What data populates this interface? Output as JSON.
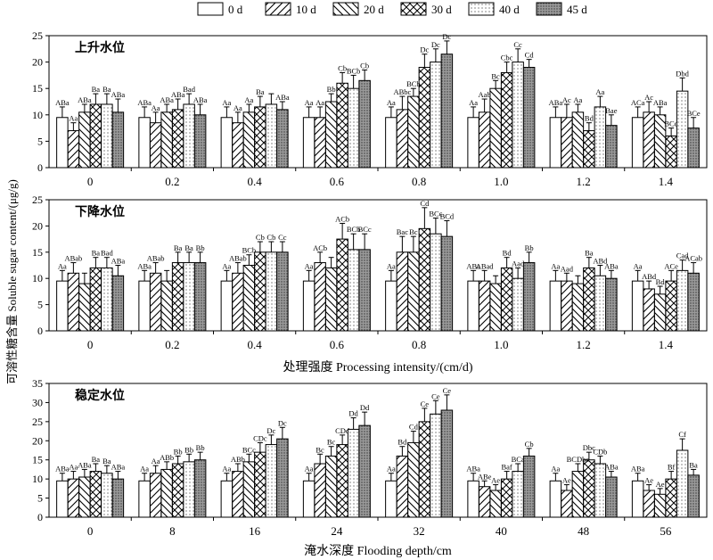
{
  "legend": [
    {
      "label": "0 d",
      "pattern": "blank"
    },
    {
      "label": "10 d",
      "pattern": "fwd"
    },
    {
      "label": "20 d",
      "pattern": "back"
    },
    {
      "label": "30 d",
      "pattern": "cross"
    },
    {
      "label": "40 d",
      "pattern": "dots"
    },
    {
      "label": "45 d",
      "pattern": "dense"
    }
  ],
  "ylabel": "可溶性糖含量  Soluble sugar content/(μg/g)",
  "chart_data": [
    {
      "type": "bar",
      "title": "上升水位",
      "categories": [
        "0",
        "0.2",
        "0.4",
        "0.6",
        "0.8",
        "1.0",
        "1.2",
        "1.4"
      ],
      "xlabel": "",
      "ylim": [
        0,
        25
      ],
      "yticks": [
        0,
        5,
        10,
        15,
        20,
        25
      ],
      "series": [
        {
          "name": "0 d",
          "values": [
            9.5,
            9.5,
            9.5,
            9.5,
            9.5,
            9.5,
            9.5,
            9.5
          ],
          "errors": [
            2.0,
            2.0,
            2.0,
            2.0,
            2.0,
            2.0,
            2.0,
            2.0
          ],
          "labels": [
            "ABa",
            "ABa",
            "Aa",
            "Aa",
            "Aa",
            "Aa",
            "ABa",
            "ACa"
          ]
        },
        {
          "name": "10 d",
          "values": [
            7.0,
            8.5,
            8.5,
            9.5,
            11.0,
            10.5,
            9.5,
            10.5
          ],
          "errors": [
            1.5,
            2.0,
            2.0,
            2.0,
            2.5,
            2.5,
            2.5,
            2.0
          ],
          "labels": [
            "Aa",
            "Aa",
            "Aa",
            "Aa",
            "ABbc",
            "Aab",
            "Ac",
            "Ac"
          ]
        },
        {
          "name": "20 d",
          "values": [
            10.5,
            10.5,
            10.5,
            12.5,
            13.5,
            15.0,
            10.5,
            10.0
          ],
          "errors": [
            1.5,
            1.5,
            1.5,
            1.5,
            1.5,
            1.5,
            1.5,
            1.5
          ],
          "labels": [
            "ABa",
            "ABa",
            "Aa",
            "Bb",
            "BCb",
            "Bc",
            "Aa",
            "ABa"
          ]
        },
        {
          "name": "30 d",
          "values": [
            12.0,
            11.0,
            11.5,
            16.0,
            19.0,
            18.0,
            7.0,
            6.0
          ],
          "errors": [
            2.0,
            2.0,
            2.0,
            2.0,
            2.5,
            2.0,
            1.5,
            1.5
          ],
          "labels": [
            "Ba",
            "ABa",
            "Ba",
            "Cb",
            "Dc",
            "Cbc",
            "Bd",
            "BCd"
          ]
        },
        {
          "name": "40 d",
          "values": [
            12.0,
            12.0,
            12.0,
            15.0,
            20.0,
            20.0,
            11.5,
            14.5
          ],
          "errors": [
            2.0,
            2.0,
            2.0,
            2.5,
            2.5,
            2.5,
            2.0,
            2.5
          ],
          "labels": [
            "Ba",
            "Bad",
            "",
            "BCb",
            "Dc",
            "Cc",
            "Aa",
            "Dbd"
          ]
        },
        {
          "name": "45 d",
          "values": [
            10.5,
            10.0,
            11.0,
            16.5,
            21.5,
            19.0,
            8.0,
            7.5
          ],
          "errors": [
            2.5,
            2.0,
            1.5,
            2.0,
            2.5,
            1.5,
            2.0,
            2.0
          ],
          "labels": [
            "ABa",
            "ABa",
            "ABa",
            "Cb",
            "Dc",
            "Cd",
            "Bae",
            "BCe"
          ]
        }
      ]
    },
    {
      "type": "bar",
      "title": "下降水位",
      "categories": [
        "0",
        "0.2",
        "0.4",
        "0.6",
        "0.8",
        "1.0",
        "1.2",
        "1.4"
      ],
      "xlabel": "处理强度 Processing intensity/(cm/d)",
      "ylim": [
        0,
        25
      ],
      "yticks": [
        0,
        5,
        10,
        15,
        20,
        25
      ],
      "series": [
        {
          "name": "0 d",
          "values": [
            9.5,
            9.5,
            9.5,
            9.5,
            9.5,
            9.5,
            9.5,
            9.5
          ],
          "errors": [
            2.0,
            2.0,
            2.0,
            2.0,
            2.0,
            2.0,
            2.0,
            2.0
          ],
          "labels": [
            "Aa",
            "ABa",
            "Aa",
            "Aa",
            "Aa",
            "ABa",
            "Aa",
            "Aa"
          ]
        },
        {
          "name": "10 d",
          "values": [
            11.0,
            11.0,
            11.0,
            13.0,
            15.0,
            9.5,
            9.5,
            8.0
          ],
          "errors": [
            2.0,
            2.0,
            2.0,
            2.0,
            3.0,
            2.0,
            1.5,
            1.5
          ],
          "labels": [
            "ABab",
            "ABab",
            "ABab",
            "ACb",
            "Bac",
            "ABad",
            "Aad",
            "ABd"
          ]
        },
        {
          "name": "20 d",
          "values": [
            9.0,
            9.5,
            12.5,
            12.0,
            15.0,
            9.0,
            9.0,
            7.0
          ],
          "errors": [
            2.0,
            2.0,
            2.0,
            2.0,
            3.0,
            1.5,
            1.5,
            1.5
          ],
          "labels": [
            "",
            "",
            "BCb",
            "",
            "Bc",
            "",
            "",
            "Bd"
          ]
        },
        {
          "name": "30 d",
          "values": [
            12.0,
            13.0,
            15.0,
            17.5,
            19.5,
            12.0,
            12.0,
            9.5
          ],
          "errors": [
            2.0,
            2.0,
            2.0,
            3.0,
            4.0,
            2.0,
            2.0,
            2.0
          ],
          "labels": [
            "Ba",
            "Ba",
            "Cb",
            "ACb",
            "Cd",
            "Bd",
            "Ba",
            "ACe"
          ]
        },
        {
          "name": "40 d",
          "values": [
            12.0,
            13.0,
            15.0,
            15.5,
            18.5,
            10.0,
            10.5,
            11.5
          ],
          "errors": [
            2.0,
            2.0,
            2.0,
            3.0,
            3.0,
            2.0,
            2.0,
            2.0
          ],
          "labels": [
            "Bad",
            "Ba",
            "Cb",
            "BCb",
            "BCc",
            "Aad",
            "ABd",
            "Cad"
          ]
        },
        {
          "name": "45 d",
          "values": [
            10.5,
            13.0,
            15.0,
            15.5,
            18.0,
            13.0,
            10.0,
            11.0
          ],
          "errors": [
            2.0,
            2.0,
            2.0,
            3.0,
            3.0,
            2.0,
            1.5,
            2.0
          ],
          "labels": [
            "ABa",
            "Bb",
            "Cc",
            "BCc",
            "BCd",
            "Bb",
            "ABa",
            "ACab"
          ]
        }
      ]
    },
    {
      "type": "bar",
      "title": "稳定水位",
      "categories": [
        "0",
        "8",
        "16",
        "24",
        "32",
        "40",
        "48",
        "56"
      ],
      "xlabel": "淹水深度 Flooding depth/cm",
      "ylim": [
        0,
        35
      ],
      "yticks": [
        0,
        5,
        10,
        15,
        20,
        25,
        30,
        35
      ],
      "series": [
        {
          "name": "0 d",
          "values": [
            9.5,
            9.5,
            9.5,
            9.5,
            9.5,
            9.5,
            9.5,
            9.5
          ],
          "errors": [
            2.0,
            2.0,
            2.0,
            2.0,
            2.0,
            2.0,
            2.0,
            2.0
          ],
          "labels": [
            "ABa",
            "Aa",
            "Aa",
            "Aa",
            "Aa",
            "ABa",
            "Aa",
            "ABa"
          ]
        },
        {
          "name": "10 d",
          "values": [
            10.0,
            11.5,
            12.0,
            14.0,
            16.0,
            8.0,
            7.0,
            7.0
          ],
          "errors": [
            2.0,
            2.0,
            2.0,
            2.5,
            2.5,
            1.5,
            1.5,
            1.5
          ],
          "labels": [
            "Aa",
            "Aa",
            "ABb",
            "Bc",
            "Bd",
            "ABe",
            "Ae",
            "Ae"
          ]
        },
        {
          "name": "20 d",
          "values": [
            10.5,
            12.5,
            14.5,
            16.0,
            19.5,
            7.0,
            12.0,
            6.0
          ],
          "errors": [
            2.0,
            2.0,
            2.0,
            2.5,
            3.0,
            1.5,
            2.0,
            1.5
          ],
          "labels": [
            "ABa",
            "ABb",
            "BCc",
            "Bc",
            "Cd",
            "Ae",
            "BCDbc",
            "Ae"
          ]
        },
        {
          "name": "30 d",
          "values": [
            12.0,
            14.0,
            17.0,
            19.0,
            25.0,
            10.0,
            15.0,
            10.0
          ],
          "errors": [
            2.0,
            2.0,
            2.5,
            2.5,
            3.5,
            2.0,
            2.0,
            2.0
          ],
          "labels": [
            "Ba",
            "Bb",
            "CDc",
            "CDd",
            "Ce",
            "Baf",
            "Dbc",
            "Bf"
          ]
        },
        {
          "name": "40 d",
          "values": [
            11.5,
            14.5,
            19.0,
            23.0,
            27.0,
            12.0,
            14.0,
            17.5
          ],
          "errors": [
            2.0,
            2.0,
            2.5,
            3.0,
            3.5,
            2.0,
            2.0,
            3.0
          ],
          "labels": [
            "Ba",
            "Bb",
            "Dc",
            "Dd",
            "Ce",
            "BCa",
            "CDb",
            "Cf"
          ]
        },
        {
          "name": "45 d",
          "values": [
            10.0,
            15.0,
            20.5,
            24.0,
            28.0,
            16.0,
            10.5,
            11.0
          ],
          "errors": [
            2.0,
            2.0,
            3.0,
            3.5,
            4.0,
            2.0,
            1.5,
            1.5
          ],
          "labels": [
            "ABa",
            "Bb",
            "Dc",
            "Dd",
            "Ce",
            "Cb",
            "ABa",
            "Ba"
          ]
        }
      ]
    }
  ]
}
